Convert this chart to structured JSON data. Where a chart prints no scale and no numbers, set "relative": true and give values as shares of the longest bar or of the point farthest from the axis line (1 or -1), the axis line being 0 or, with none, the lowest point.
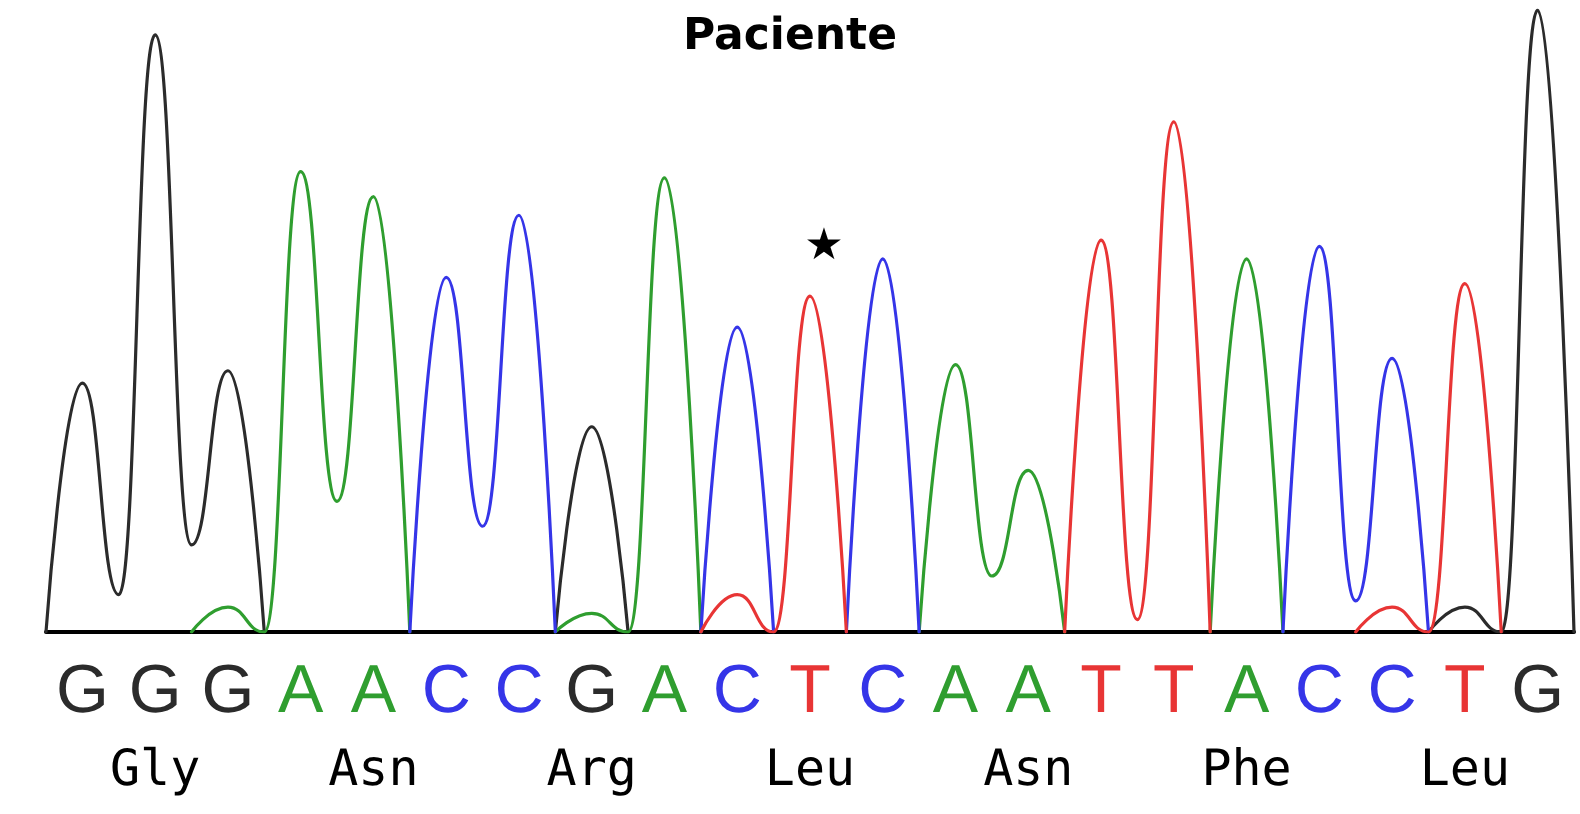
{
  "chart_data": {
    "type": "line",
    "title": "Paciente",
    "relative": true,
    "marker": "none",
    "line_style": "solid",
    "categories": [
      null,
      "G",
      null,
      "G",
      null,
      "G",
      null,
      "A",
      null,
      "A",
      null,
      "C",
      null,
      "C",
      null,
      "G",
      null,
      "A",
      null,
      "C",
      null,
      "T",
      null,
      "C",
      null,
      "A",
      null,
      "A",
      null,
      "T",
      null,
      "T",
      null,
      "A",
      null,
      "C",
      null,
      "C",
      null,
      "T",
      null,
      "G",
      null
    ],
    "series": [
      {
        "color": "#2b2b2b",
        "values": [
          0,
          0.4,
          0.06,
          0.96,
          0.14,
          0.42,
          0,
          null,
          null,
          null,
          null,
          null,
          null,
          null,
          0,
          0.33,
          0,
          null,
          null,
          null,
          null,
          null,
          null,
          null,
          null,
          null,
          null,
          null,
          null,
          null,
          null,
          null,
          null,
          null,
          null,
          null,
          null,
          null,
          0,
          0.04,
          0,
          1,
          0
        ]
      },
      {
        "color": "#2f9e2f",
        "values": [
          null,
          null,
          null,
          null,
          0,
          0.04,
          0,
          0.74,
          0.21,
          0.7,
          0,
          null,
          null,
          null,
          0,
          0.03,
          0,
          0.73,
          0,
          null,
          null,
          null,
          null,
          null,
          0,
          0.43,
          0.09,
          0.26,
          0,
          null,
          null,
          null,
          0,
          0.6,
          0,
          null,
          null,
          null,
          null,
          null,
          null,
          null,
          null
        ]
      },
      {
        "color": "#3535e8",
        "values": [
          null,
          null,
          null,
          null,
          null,
          null,
          null,
          null,
          null,
          null,
          0,
          0.57,
          0.17,
          0.67,
          0,
          null,
          null,
          null,
          0,
          0.49,
          0,
          null,
          0,
          0.6,
          0,
          null,
          null,
          null,
          null,
          null,
          null,
          null,
          null,
          null,
          0,
          0.62,
          0.05,
          0.44,
          0,
          null,
          null,
          null,
          null
        ]
      },
      {
        "color": "#e83535",
        "values": [
          null,
          null,
          null,
          null,
          null,
          null,
          null,
          null,
          null,
          null,
          null,
          null,
          null,
          null,
          null,
          null,
          null,
          null,
          0,
          0.06,
          0,
          0.54,
          0,
          null,
          null,
          null,
          null,
          null,
          0,
          0.63,
          0.02,
          0.82,
          0,
          null,
          null,
          null,
          0,
          0.04,
          0,
          0.56,
          0,
          null,
          null
        ]
      }
    ],
    "annotations": [
      "★",
      "Gly",
      "Asn",
      "Arg",
      "Leu",
      "Asn",
      "Phe",
      "Leu"
    ]
  }
}
